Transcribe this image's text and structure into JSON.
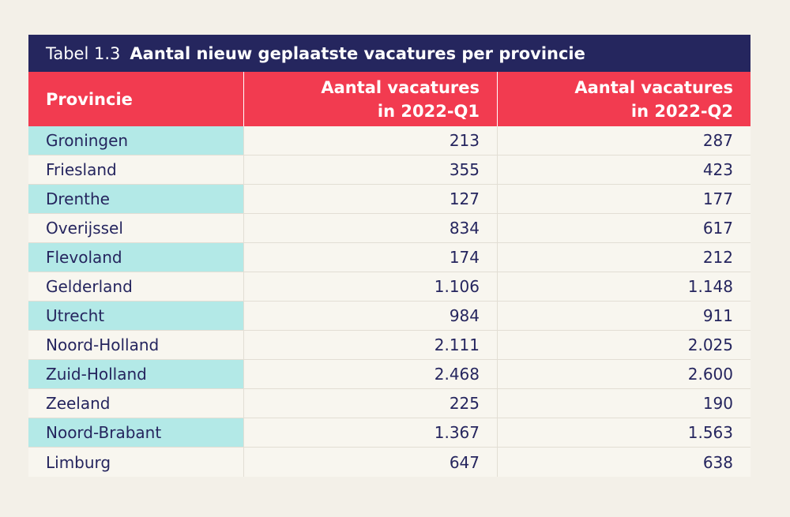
{
  "table": {
    "caption_number": "Tabel 1.3",
    "caption_title": "Aantal nieuw geplaatste vacatures per provincie",
    "headers": {
      "provincie": "Provincie",
      "q1_line1": "Aantal vacatures",
      "q1_line2": "in 2022-Q1",
      "q2_line1": "Aantal vacatures",
      "q2_line2": "in 2022-Q2"
    },
    "rows": [
      {
        "provincie": "Groningen",
        "q1": "213",
        "q2": "287"
      },
      {
        "provincie": "Friesland",
        "q1": "355",
        "q2": "423"
      },
      {
        "provincie": "Drenthe",
        "q1": "127",
        "q2": "177"
      },
      {
        "provincie": "Overijssel",
        "q1": "834",
        "q2": "617"
      },
      {
        "provincie": "Flevoland",
        "q1": "174",
        "q2": "212"
      },
      {
        "provincie": "Gelderland",
        "q1": "1.106",
        "q2": "1.148"
      },
      {
        "provincie": "Utrecht",
        "q1": "984",
        "q2": "911"
      },
      {
        "provincie": "Noord-Holland",
        "q1": "2.111",
        "q2": "2.025"
      },
      {
        "provincie": "Zuid-Holland",
        "q1": "2.468",
        "q2": "2.600"
      },
      {
        "provincie": "Zeeland",
        "q1": "225",
        "q2": "190"
      },
      {
        "provincie": "Noord-Brabant",
        "q1": "1.367",
        "q2": "1.563"
      },
      {
        "provincie": "Limburg",
        "q1": "647",
        "q2": "638"
      }
    ]
  },
  "colors": {
    "background": "#f3f0e8",
    "caption_bar": "#25265e",
    "header_bar": "#f23b50",
    "highlight_cell": "#b3e9e7",
    "text": "#25255e"
  }
}
